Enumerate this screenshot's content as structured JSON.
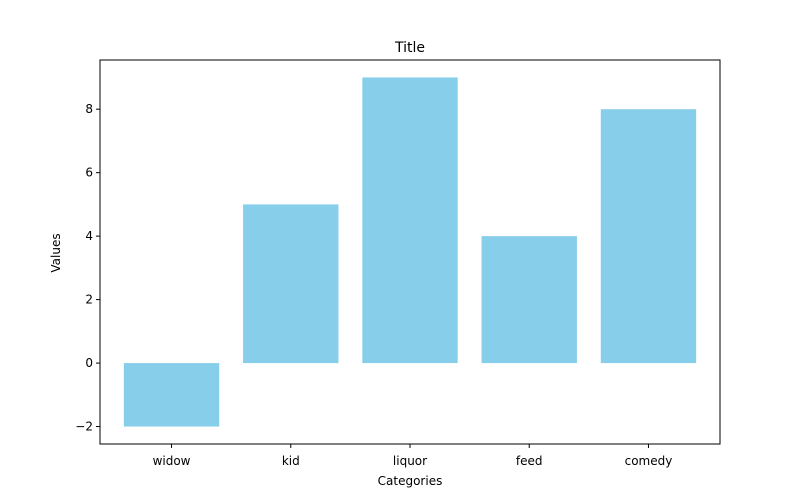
{
  "chart_data": {
    "type": "bar",
    "title": "Title",
    "xlabel": "Categories",
    "ylabel": "Values",
    "categories": [
      "widow",
      "kid",
      "liquor",
      "feed",
      "comedy"
    ],
    "values": [
      -2,
      5,
      9,
      4,
      8
    ],
    "ylim": [
      -2.55,
      9.55
    ],
    "yticks": [
      -2,
      0,
      2,
      4,
      6,
      8
    ],
    "ytick_labels": [
      "−2",
      "0",
      "2",
      "4",
      "6",
      "8"
    ],
    "bar_color": "#87ceeb",
    "grid": false,
    "legend": "none"
  }
}
